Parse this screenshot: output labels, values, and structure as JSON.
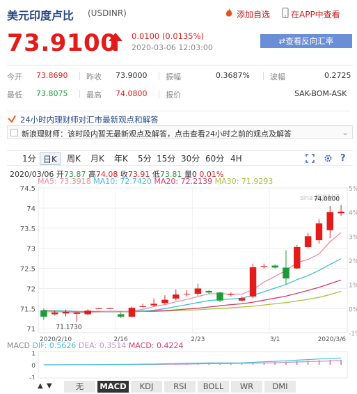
{
  "header": {
    "title": "美元印度卢比",
    "code": "(USDINR)",
    "add_fav": "添加自选",
    "app_view": "在APP中查看"
  },
  "quote": {
    "price": "73.9100",
    "change": "0.0100 (0.0135%)",
    "timestamp": "2020-03-06 12:03:00",
    "reverse_btn": "查看反向汇率"
  },
  "stats": {
    "open_label": "今开",
    "open": "73.8690",
    "prev_label": "昨收",
    "prev": "73.9000",
    "amp_label": "振幅",
    "amp": "0.3687%",
    "wave_label": "波幅",
    "wave": "0.2725",
    "low_label": "最低",
    "low": "73.8075",
    "high_label": "最高",
    "high": "74.0800",
    "quote_label": "报价",
    "quote_src": "SAK-BOM-ASK"
  },
  "news": {
    "header": "24小时内理财师对汇市最新观点和解答",
    "message": "新浪理财师：该时段内暂无最新观点及解答，点击查看24小时之前的观点及解答"
  },
  "period_tabs": [
    "1分",
    "日K",
    "周K",
    "月K",
    "年K",
    "5分",
    "15分",
    "30分",
    "60分",
    "4H"
  ],
  "candle_info": {
    "date": "2020/03/06",
    "open_label": "开",
    "open": "73.87",
    "high_label": "高",
    "high": "74.08",
    "close_label": "收",
    "close": "73.91",
    "low_label": "低",
    "low": "73.81",
    "vol_label": "量",
    "vol": "0",
    "pct": "0.01%"
  },
  "ma_values": {
    "ma5": "MA5: 73.3918",
    "ma10": "MA10: 72.7420",
    "ma20": "MA20: 72.2139",
    "ma30": "MA30: 71.9293"
  },
  "colors": {
    "up": "#e21b1b",
    "down": "#1f9a3a",
    "ma5": "#f08ca0",
    "ma10": "#3ebfd8",
    "ma20": "#d9386a",
    "ma30": "#a5c43a",
    "link": "#2a4a8a"
  },
  "chart_data": {
    "type": "candlestick",
    "watermark": "新浪财经",
    "ylim": [
      70.9,
      74.5
    ],
    "y_ticks": [
      "74.5",
      "74",
      "73.5",
      "73",
      "72.5",
      "72",
      "71.5",
      "71"
    ],
    "pct_ticks": [
      "5%",
      "4%",
      "3%",
      "2%",
      "1%",
      "0%",
      "-1%"
    ],
    "x_ticks": [
      "2020/2/10",
      "2/16",
      "2/23",
      "3/1",
      "2020/3/6"
    ],
    "max_label": "74.0800",
    "min_label": "71.1730",
    "candles": [
      {
        "o": 71.46,
        "c": 71.3,
        "h": 71.5,
        "l": 71.22
      },
      {
        "o": 71.36,
        "c": 71.4,
        "h": 71.45,
        "l": 71.33
      },
      {
        "o": 71.38,
        "c": 71.42,
        "h": 71.48,
        "l": 71.3
      },
      {
        "o": 71.37,
        "c": 71.4,
        "h": 71.43,
        "l": 71.17
      },
      {
        "o": 71.36,
        "c": 71.45,
        "h": 71.48,
        "l": 71.34
      },
      {
        "o": 71.51,
        "c": 71.51,
        "h": 71.52,
        "l": 71.5
      },
      {
        "o": 71.51,
        "c": 71.51,
        "h": 71.52,
        "l": 71.5
      },
      {
        "o": 71.36,
        "c": 71.3,
        "h": 71.4,
        "l": 71.26
      },
      {
        "o": 71.3,
        "c": 71.52,
        "h": 71.55,
        "l": 71.28
      },
      {
        "o": 71.56,
        "c": 71.56,
        "h": 71.62,
        "l": 71.53
      },
      {
        "o": 71.58,
        "c": 71.62,
        "h": 71.75,
        "l": 71.55
      },
      {
        "o": 71.64,
        "c": 71.72,
        "h": 71.83,
        "l": 71.6
      },
      {
        "o": 71.75,
        "c": 71.85,
        "h": 71.98,
        "l": 71.7
      },
      {
        "o": 71.87,
        "c": 71.87,
        "h": 71.96,
        "l": 71.8
      },
      {
        "o": 71.87,
        "c": 72.0,
        "h": 72.12,
        "l": 71.82
      },
      {
        "o": 71.94,
        "c": 71.9,
        "h": 71.96,
        "l": 71.86
      },
      {
        "o": 71.9,
        "c": 71.7,
        "h": 71.92,
        "l": 71.66
      },
      {
        "o": 71.86,
        "c": 71.86,
        "h": 71.9,
        "l": 71.8
      },
      {
        "o": 71.7,
        "c": 71.76,
        "h": 71.8,
        "l": 71.68
      },
      {
        "o": 71.8,
        "c": 72.53,
        "h": 72.62,
        "l": 71.76
      },
      {
        "o": 72.56,
        "c": 72.56,
        "h": 72.62,
        "l": 72.5
      },
      {
        "o": 72.57,
        "c": 72.52,
        "h": 72.6,
        "l": 72.5
      },
      {
        "o": 72.52,
        "c": 72.25,
        "h": 72.95,
        "l": 72.1
      },
      {
        "o": 72.5,
        "c": 73.03,
        "h": 73.08,
        "l": 72.48
      },
      {
        "o": 73.03,
        "c": 73.3,
        "h": 73.38,
        "l": 73.0
      },
      {
        "o": 73.2,
        "c": 73.62,
        "h": 73.72,
        "l": 73.12
      },
      {
        "o": 73.45,
        "c": 73.9,
        "h": 74.05,
        "l": 73.25
      },
      {
        "o": 73.87,
        "c": 73.91,
        "h": 74.08,
        "l": 73.81
      }
    ],
    "ma5": [
      71.46,
      71.43,
      71.42,
      71.4,
      71.4,
      71.42,
      71.43,
      71.42,
      71.44,
      71.48,
      71.55,
      71.6,
      71.67,
      71.73,
      71.8,
      71.87,
      71.87,
      71.86,
      71.86,
      71.97,
      72.16,
      72.3,
      72.45,
      72.64,
      72.72,
      72.86,
      73.16,
      73.39
    ],
    "ma10": [
      71.46,
      71.45,
      71.44,
      71.43,
      71.42,
      71.42,
      71.42,
      71.42,
      71.43,
      71.44,
      71.46,
      71.5,
      71.55,
      71.6,
      71.65,
      71.7,
      71.72,
      71.74,
      71.76,
      71.83,
      71.92,
      72.01,
      72.1,
      72.22,
      72.32,
      72.45,
      72.6,
      72.74
    ],
    "ma20": [
      71.45,
      71.44,
      71.44,
      71.43,
      71.43,
      71.43,
      71.43,
      71.43,
      71.43,
      71.44,
      71.44,
      71.45,
      71.47,
      71.49,
      71.51,
      71.54,
      71.57,
      71.6,
      71.62,
      71.66,
      71.71,
      71.76,
      71.81,
      71.88,
      71.95,
      72.03,
      72.12,
      72.21
    ],
    "ma30": [
      71.42,
      71.42,
      71.42,
      71.42,
      71.42,
      71.42,
      71.42,
      71.42,
      71.42,
      71.43,
      71.43,
      71.44,
      71.45,
      71.46,
      71.47,
      71.49,
      71.5,
      71.52,
      71.54,
      71.56,
      71.59,
      71.62,
      71.65,
      71.69,
      71.73,
      71.78,
      71.85,
      71.93
    ],
    "macd": {
      "label": "MACD",
      "dif": "DIF: 0.5626",
      "dea": "DEA: 0.3514",
      "macd": "MACD: 0.4224",
      "y_ticks": [
        "1",
        "0",
        "-1"
      ],
      "ylim": [
        -1.1,
        1.1
      ],
      "dif_values": [
        0.0,
        0.0,
        0.01,
        0.01,
        0.02,
        0.02,
        0.03,
        0.03,
        0.04,
        0.05,
        0.06,
        0.08,
        0.1,
        0.12,
        0.14,
        0.15,
        0.15,
        0.15,
        0.16,
        0.2,
        0.25,
        0.29,
        0.33,
        0.38,
        0.43,
        0.48,
        0.53,
        0.56
      ],
      "dea_values": [
        0.0,
        0.0,
        0.0,
        0.01,
        0.01,
        0.01,
        0.02,
        0.02,
        0.02,
        0.03,
        0.03,
        0.04,
        0.05,
        0.06,
        0.08,
        0.09,
        0.1,
        0.11,
        0.12,
        0.13,
        0.15,
        0.17,
        0.2,
        0.23,
        0.26,
        0.29,
        0.32,
        0.35
      ],
      "hist_values": [
        0.0,
        0.0,
        0.02,
        0.0,
        0.02,
        0.02,
        0.02,
        0.02,
        0.04,
        0.04,
        0.06,
        0.08,
        0.1,
        0.12,
        0.12,
        0.12,
        0.1,
        0.08,
        0.08,
        0.14,
        0.2,
        0.24,
        0.26,
        0.3,
        0.34,
        0.38,
        0.42,
        0.42
      ]
    }
  },
  "indicator_tabs": [
    "无",
    "MACD",
    "KDJ",
    "RSI",
    "BOLL",
    "WR",
    "DMI"
  ],
  "indicator_active": "MACD"
}
